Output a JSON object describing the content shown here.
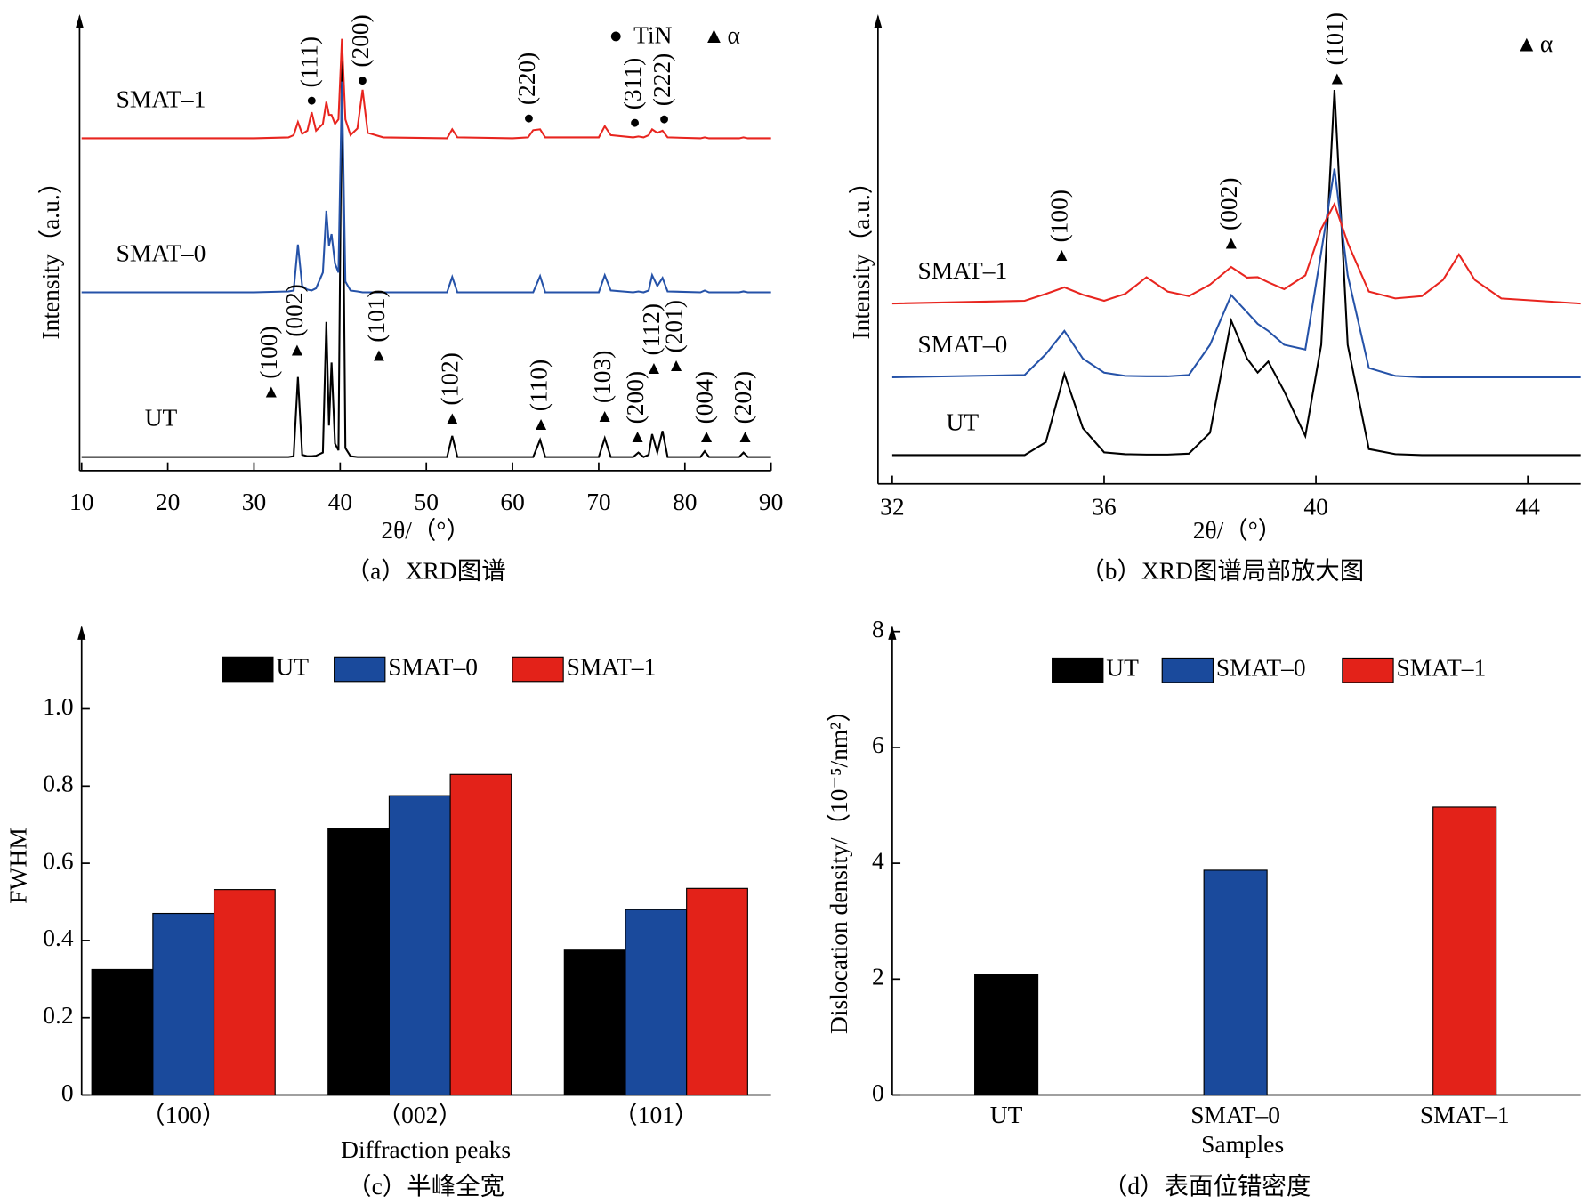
{
  "chart_data": [
    {
      "type": "line",
      "caption": "（a）XRD图谱",
      "xlabel": "2θ/（°）",
      "ylabel": "Intensity（a.u.）",
      "xlim": [
        10,
        90
      ],
      "xticks": [
        10,
        20,
        30,
        40,
        50,
        60,
        70,
        80,
        90
      ],
      "ylim": [
        0,
        100
      ],
      "legend": [
        {
          "marker": "●",
          "label": "TiN"
        },
        {
          "marker": "▲",
          "label": "α"
        }
      ],
      "x": [
        10,
        20,
        30,
        34,
        34.6,
        35.1,
        35.6,
        36.2,
        36.7,
        37.2,
        38.0,
        38.4,
        38.7,
        39.0,
        39.4,
        39.8,
        40.2,
        40.6,
        41.2,
        42.0,
        42.6,
        43.2,
        45,
        52.4,
        53.0,
        53.6,
        60,
        61.8,
        62.4,
        63.2,
        63.8,
        70,
        70.7,
        71.4,
        74.0,
        74.6,
        75.2,
        75.8,
        76.2,
        76.8,
        77.4,
        78.0,
        81.8,
        82.3,
        82.8,
        86.3,
        86.8,
        87.3,
        90
      ],
      "series": [
        {
          "name": "UT",
          "color": "#000000",
          "values": [
            3,
            3,
            3,
            3,
            3.2,
            20.8,
            3.5,
            3.2,
            3.2,
            3.3,
            4,
            33,
            10,
            24,
            6,
            4.5,
            92,
            5,
            3.2,
            3,
            3,
            3,
            3,
            3,
            7.7,
            3,
            3,
            3,
            3,
            6.8,
            3,
            3,
            7.2,
            3,
            3,
            4,
            3,
            3.5,
            8.1,
            4,
            8.8,
            3,
            3,
            4.3,
            3,
            3,
            4,
            3,
            3
          ]
        },
        {
          "name": "SMAT–0",
          "color": "#2552a8",
          "values": [
            39.6,
            39.6,
            39.6,
            39.8,
            40,
            50.2,
            41,
            40.2,
            40,
            40.5,
            44,
            57.7,
            50,
            52.5,
            46,
            44,
            86.4,
            42,
            40,
            39.8,
            39.6,
            39.6,
            39.6,
            39.6,
            43,
            39.6,
            39.6,
            39.6,
            39.6,
            43.2,
            39.6,
            39.6,
            43.4,
            40,
            39.6,
            39.8,
            39.6,
            40,
            43.4,
            41,
            42.8,
            39.8,
            39.6,
            40,
            39.6,
            39.6,
            39.8,
            39.6,
            39.6
          ]
        },
        {
          "name": "SMAT–1",
          "color": "#e8251f",
          "values": [
            73.8,
            73.8,
            73.8,
            74,
            74.5,
            77.4,
            74.8,
            75.5,
            79.6,
            75.5,
            77,
            81.9,
            79,
            79,
            77,
            78,
            95.9,
            78,
            74.5,
            76,
            84.6,
            75,
            74,
            73.8,
            75.8,
            74,
            73.8,
            74,
            75.6,
            75.8,
            74,
            74,
            76.5,
            74.5,
            74,
            74.2,
            74,
            74.5,
            75.8,
            75,
            75.5,
            74,
            73.8,
            74,
            73.8,
            73.8,
            74,
            73.8,
            73.8
          ]
        }
      ],
      "annotations": [
        {
          "text": "(111)",
          "marker": "●",
          "x": 36.7,
          "y": 81.9
        },
        {
          "text": "(200)",
          "marker": "●",
          "x": 42.6,
          "y": 86.4
        },
        {
          "text": "(220)",
          "marker": "●",
          "x": 61.9,
          "y": 78
        },
        {
          "text": "(311)",
          "marker": "●",
          "x": 74.2,
          "y": 77
        },
        {
          "text": "(222)",
          "marker": "●",
          "x": 77.6,
          "y": 77.8
        },
        {
          "text": "(100)",
          "marker": "▲",
          "x": 32,
          "y": 17.2
        },
        {
          "text": "(002)",
          "marker": "▲",
          "x": 35,
          "y": 26.5
        },
        {
          "text": "(101)",
          "marker": "▲",
          "x": 44.5,
          "y": 25.3
        },
        {
          "text": "(102)",
          "marker": "▲",
          "x": 53,
          "y": 11.3
        },
        {
          "text": "(110)",
          "marker": "▲",
          "x": 63.3,
          "y": 10
        },
        {
          "text": "(103)",
          "marker": "▲",
          "x": 70.7,
          "y": 11.8
        },
        {
          "text": "(200)",
          "marker": "▲",
          "x": 74.5,
          "y": 7.2
        },
        {
          "text": "(112)",
          "marker": "▲",
          "x": 76.4,
          "y": 22.4
        },
        {
          "text": "(201)",
          "marker": "▲",
          "x": 79,
          "y": 23
        },
        {
          "text": "(004)",
          "marker": "▲",
          "x": 82.5,
          "y": 7.2
        },
        {
          "text": "(202)",
          "marker": "▲",
          "x": 87,
          "y": 7.2
        }
      ]
    },
    {
      "type": "line",
      "caption": "（b）XRD图谱局部放大图",
      "xlabel": "2θ/（°）",
      "ylabel": "Intensity（a.u.）",
      "xlim": [
        32,
        45
      ],
      "xticks": [
        32,
        36,
        40,
        44
      ],
      "ylim": [
        0,
        100
      ],
      "legend": [
        {
          "marker": "▲",
          "label": "α"
        }
      ],
      "x": [
        32,
        34.5,
        34.9,
        35.25,
        35.6,
        36.0,
        36.4,
        36.8,
        37.2,
        37.6,
        38.0,
        38.4,
        38.7,
        38.9,
        39.1,
        39.4,
        39.8,
        40.1,
        40.35,
        40.6,
        41.0,
        41.5,
        42.0,
        42.4,
        42.7,
        43.0,
        43.5,
        45
      ],
      "series": [
        {
          "name": "UT",
          "color": "#000000",
          "values": [
            6.2,
            6.2,
            9,
            23.7,
            12,
            6.8,
            6.4,
            6.3,
            6.3,
            6.5,
            11,
            35.2,
            27,
            24,
            26.4,
            20,
            10.3,
            30,
            85,
            30,
            7.5,
            6.4,
            6.2,
            6.2,
            6.2,
            6.2,
            6.2,
            6.2
          ]
        },
        {
          "name": "SMAT–0",
          "color": "#2552a8",
          "values": [
            23,
            23.5,
            28,
            33,
            27,
            24,
            23.3,
            23.2,
            23.2,
            23.5,
            30,
            40.7,
            37,
            34.5,
            33,
            30,
            29,
            50,
            68,
            45,
            25,
            23.3,
            23,
            23,
            23,
            23,
            23,
            23
          ]
        },
        {
          "name": "SMAT–1",
          "color": "#e8251f",
          "values": [
            38.9,
            39.5,
            41,
            42.4,
            40.8,
            39.5,
            41,
            44.6,
            41.5,
            40.5,
            43,
            46.8,
            44.5,
            44.6,
            43.5,
            42,
            45,
            55,
            60.4,
            52,
            41.5,
            40,
            40.5,
            44,
            49.5,
            44,
            40,
            38.9
          ]
        }
      ],
      "annotations": [
        {
          "text": "(100)",
          "marker": "▲",
          "x": 35.2,
          "y": 49
        },
        {
          "text": "(002)",
          "marker": "▲",
          "x": 38.4,
          "y": 51.6
        },
        {
          "text": "(101)",
          "marker": "▲",
          "x": 40.4,
          "y": 87.2
        }
      ]
    },
    {
      "type": "bar",
      "caption": "（c）半峰全宽",
      "xlabel": "Diffraction peaks",
      "ylabel": "FWHM",
      "categories": [
        "（100）",
        "（002）",
        "（101）"
      ],
      "ylim": [
        0,
        1.2
      ],
      "yticks": [
        0,
        0.2,
        0.4,
        0.6,
        0.8,
        {
          "value": 1.0,
          "label": "1.0"
        }
      ],
      "series": [
        {
          "name": "UT",
          "color": "#000000",
          "values": [
            0.325,
            0.69,
            0.375
          ]
        },
        {
          "name": "SMAT–0",
          "color": "#1a4a9c",
          "values": [
            0.47,
            0.775,
            0.48
          ]
        },
        {
          "name": "SMAT–1",
          "color": "#e32219",
          "values": [
            0.532,
            0.83,
            0.535
          ]
        }
      ]
    },
    {
      "type": "bar",
      "caption": "（d）表面位错密度",
      "xlabel": "Samples",
      "ylabel": "Dislocation density/（10⁻⁵/nm²）",
      "categories": [
        "UT",
        "SMAT–0",
        "SMAT–1"
      ],
      "ylim": [
        0,
        8
      ],
      "yticks": [
        0,
        2,
        4,
        6,
        8
      ],
      "series": [
        {
          "name": "UT",
          "color": "#000000",
          "values": [
            2.08,
            null,
            null
          ]
        },
        {
          "name": "SMAT–0",
          "color": "#1a4a9c",
          "values": [
            null,
            3.88,
            null
          ]
        },
        {
          "name": "SMAT–1",
          "color": "#e32219",
          "values": [
            null,
            null,
            4.97
          ]
        }
      ]
    }
  ]
}
